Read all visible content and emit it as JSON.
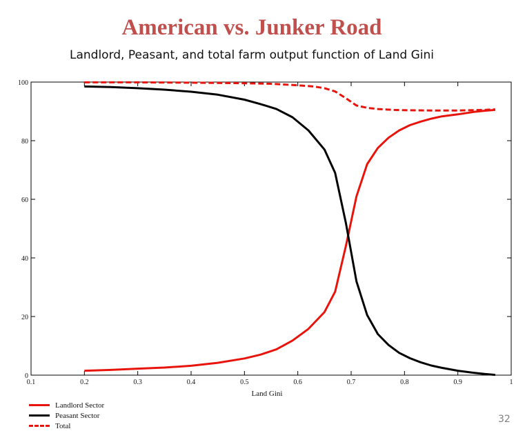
{
  "slide": {
    "title": "American vs. Junker Road",
    "subtitle": "Landlord, Peasant, and total farm output function of Land Gini",
    "page_number": "32",
    "title_color": "#c0504d"
  },
  "chart_data": {
    "type": "line",
    "title": "",
    "xlabel": "Land Gini",
    "ylabel": "",
    "xlim": [
      0.1,
      1
    ],
    "ylim": [
      0,
      100
    ],
    "x_ticks": [
      "0.1",
      "0.2",
      "0.3",
      "0.4",
      "0.5",
      "0.6",
      "0.7",
      "0.8",
      "0.9",
      "1"
    ],
    "y_ticks": [
      "0",
      "20",
      "40",
      "60",
      "80",
      "100"
    ],
    "grid": false,
    "legend_position": "bottom-left",
    "series": [
      {
        "name": "Landlord Sector",
        "color": "#e8140c",
        "style": "solid",
        "x": [
          0.2,
          0.25,
          0.3,
          0.35,
          0.4,
          0.45,
          0.5,
          0.53,
          0.56,
          0.59,
          0.62,
          0.65,
          0.67,
          0.69,
          0.71,
          0.73,
          0.75,
          0.77,
          0.79,
          0.81,
          0.83,
          0.85,
          0.87,
          0.9,
          0.93,
          0.95,
          0.97
        ],
        "y": [
          1.5,
          1.8,
          2.2,
          2.6,
          3.2,
          4.2,
          5.7,
          7.0,
          8.8,
          11.8,
          15.8,
          21.5,
          28.5,
          44.0,
          61.0,
          72.0,
          77.5,
          81.0,
          83.5,
          85.3,
          86.5,
          87.5,
          88.3,
          89.0,
          89.8,
          90.2,
          90.5
        ]
      },
      {
        "name": "Peasant Sector",
        "color": "#000000",
        "style": "solid",
        "x": [
          0.2,
          0.25,
          0.3,
          0.35,
          0.4,
          0.45,
          0.5,
          0.53,
          0.56,
          0.59,
          0.62,
          0.65,
          0.67,
          0.69,
          0.71,
          0.73,
          0.75,
          0.77,
          0.79,
          0.81,
          0.83,
          0.85,
          0.87,
          0.9,
          0.93,
          0.95,
          0.97
        ],
        "y": [
          98.5,
          98.3,
          97.9,
          97.4,
          96.7,
          95.7,
          94.0,
          92.5,
          90.8,
          88.0,
          83.5,
          77.0,
          69.0,
          52.0,
          32.0,
          20.5,
          14.0,
          10.3,
          7.6,
          5.8,
          4.4,
          3.3,
          2.5,
          1.5,
          0.8,
          0.4,
          0.1
        ]
      },
      {
        "name": "Total",
        "color": "#e8140c",
        "style": "dashed",
        "x": [
          0.2,
          0.3,
          0.4,
          0.5,
          0.55,
          0.6,
          0.63,
          0.65,
          0.67,
          0.69,
          0.71,
          0.73,
          0.75,
          0.78,
          0.8,
          0.85,
          0.9,
          0.95,
          0.97
        ],
        "y": [
          99.9,
          99.9,
          99.8,
          99.6,
          99.4,
          98.9,
          98.5,
          97.9,
          96.8,
          94.5,
          92.0,
          91.2,
          90.8,
          90.5,
          90.4,
          90.3,
          90.3,
          90.5,
          90.7
        ]
      }
    ]
  }
}
